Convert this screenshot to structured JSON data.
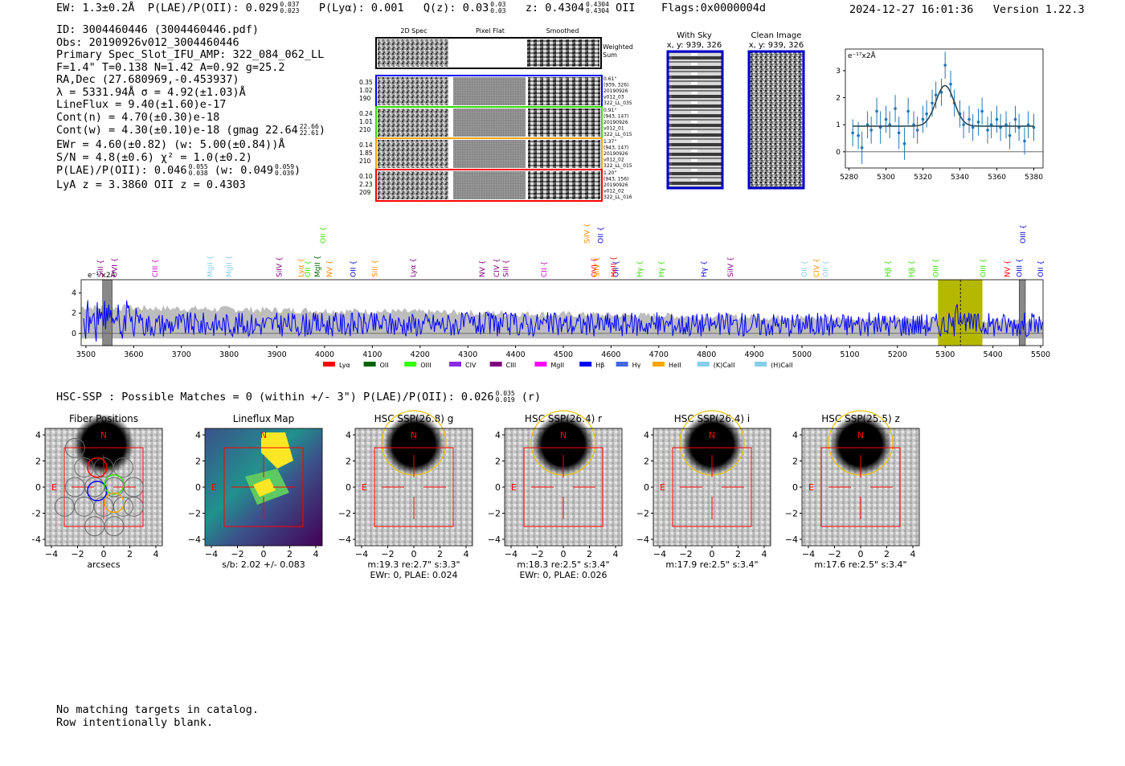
{
  "header": {
    "ew": "EW: 1.3±0.2Å",
    "plae_label": "P(LAE)/P(OII): 0.029",
    "plae_hi": "0.037",
    "plae_lo": "0.023",
    "plya": "P(Lyα): 0.001",
    "qz_label": "Q(z): 0.03",
    "qz_hi": "0.03",
    "qz_lo": "0.03",
    "z_label": "z: 0.4304",
    "z_hi": "0.4304",
    "z_lo": "0.4304",
    "z_line": "OII",
    "flags": "Flags:0x0000004d",
    "datetime": "2024-12-27 16:01:36",
    "version": "Version 1.22.3"
  },
  "info": {
    "id": "ID: 3004460446 (3004460446.pdf)",
    "obs": "Obs: 20190926v012_3004460446",
    "primary": "Primary Spec_Slot_IFU_AMP: 322_084_062_LL",
    "fit": "F=1.4\"  T=0.138  N=1.42  A=0.92  g=25.2",
    "radec": "RA,Dec (27.680969,-0.453937)",
    "lambda": "λ = 5331.94Å  σ = 4.92(±1.03)Å",
    "lineflux": "LineFlux = 9.40(±1.60)e-17",
    "contn": "Cont(n) = 4.70(±0.30)e-18",
    "contw": "Cont(w) = 4.30(±0.10)e-18 (gmag 22.64",
    "gmag_hi": "22.66",
    "gmag_lo": "22.61",
    "ewr": "EWr = 4.60(±0.82) (w: 5.00(±0.84))Å",
    "sn": "S/N = 4.8(±0.6)  χ² = 1.0(±0.2)",
    "plae": "P(LAE)/P(OII): 0.046",
    "plae_hi": "0.055",
    "plae_lo": "0.038",
    "plae_w": "(w: 0.049",
    "plae_w_hi": "0.059",
    "plae_w_lo": "0.039",
    "lya_z": "LyA z = 3.3860  OII z = 0.4303"
  },
  "cutouts": {
    "col_2d": "2D Spec",
    "col_flat": "Pixel Flat",
    "col_smooth": "Smoothed",
    "weighted": "Weighted",
    "sum": "Sum",
    "rows": [
      {
        "v1": "0.35",
        "v2": "1.02",
        "v3": "190",
        "d1": "0.61\"",
        "d2": "(939, 326)",
        "d3": "20190926",
        "d4": "v012_03",
        "d5": "322_LL_035",
        "color": "#0000ff"
      },
      {
        "v1": "0.24",
        "v2": "1.01",
        "v3": "210",
        "d1": "0.91\"",
        "d2": "(943, 147)",
        "d3": "20190926",
        "d4": "v012_01",
        "d5": "322_LL_015",
        "color": "#33dd00"
      },
      {
        "v1": "0.14",
        "v2": "1.85",
        "v3": "210",
        "d1": "1.37\"",
        "d2": "(943, 147)",
        "d3": "20190926",
        "d4": "v012_02",
        "d5": "322_LL_015",
        "color": "#ffa500"
      },
      {
        "v1": "0.10",
        "v2": "2.23",
        "v3": "209",
        "d1": "1.20\"",
        "d2": "(943, 156)",
        "d3": "20190926",
        "d4": "v012_02",
        "d5": "322_LL_016",
        "color": "#ff0000"
      }
    ],
    "with_sky": "With Sky",
    "with_sky_xy": "x, y: 939, 326",
    "clean": "Clean Image",
    "clean_xy": "x, y: 939, 326"
  },
  "chart_data": [
    {
      "type": "scatter",
      "title": "",
      "ylabel": "e⁻¹⁷x2Å",
      "xlim": [
        5278,
        5385
      ],
      "ylim": [
        -0.6,
        3.8
      ],
      "xticks": [
        5280,
        5300,
        5320,
        5340,
        5360,
        5380
      ],
      "yticks": [
        0,
        1,
        2,
        3
      ],
      "x": [
        5282,
        5285,
        5287,
        5290,
        5292,
        5295,
        5297,
        5300,
        5302,
        5305,
        5307,
        5310,
        5312,
        5315,
        5317,
        5320,
        5322,
        5325,
        5327,
        5330,
        5332,
        5335,
        5337,
        5340,
        5342,
        5345,
        5347,
        5350,
        5352,
        5355,
        5357,
        5360,
        5362,
        5365,
        5367,
        5370,
        5372,
        5375,
        5377,
        5380
      ],
      "y": [
        0.7,
        0.6,
        0.15,
        1.0,
        0.8,
        1.5,
        0.9,
        1.2,
        1.0,
        1.6,
        0.7,
        0.3,
        1.5,
        1.0,
        0.8,
        1.2,
        1.4,
        1.8,
        2.1,
        2.2,
        3.2,
        2.5,
        1.8,
        1.4,
        1.0,
        1.2,
        0.9,
        1.1,
        1.5,
        0.8,
        1.0,
        1.2,
        0.9,
        1.0,
        0.6,
        1.2,
        0.9,
        0.4,
        1.0,
        0.9
      ],
      "yerr": [
        0.5,
        0.5,
        0.6,
        0.5,
        0.5,
        0.5,
        0.6,
        0.5,
        0.5,
        0.5,
        0.6,
        0.6,
        0.5,
        0.5,
        0.5,
        0.5,
        0.5,
        0.5,
        0.5,
        0.5,
        0.5,
        0.5,
        0.5,
        0.5,
        0.5,
        0.5,
        0.5,
        0.5,
        0.5,
        0.5,
        0.5,
        0.5,
        0.5,
        0.5,
        0.5,
        0.5,
        0.5,
        0.5,
        0.5,
        0.5
      ],
      "fit": {
        "center": 5331.94,
        "sigma": 4.92,
        "amp": 1.5,
        "cont": 0.95
      }
    },
    {
      "type": "line",
      "title": "",
      "ylabel": "e⁻¹⁷x2Å",
      "xlim": [
        3490,
        5505
      ],
      "ylim": [
        -1.2,
        5.3
      ],
      "xticks": [
        3500,
        3600,
        3700,
        3800,
        3900,
        4000,
        4100,
        4200,
        4300,
        4400,
        4500,
        4600,
        4700,
        4800,
        4900,
        5000,
        5100,
        5200,
        5300,
        5400,
        5500
      ],
      "yticks": [
        0,
        2,
        4
      ],
      "highlight": {
        "x0": 5285,
        "x1": 5378,
        "line": 5332
      },
      "masks": [
        [
          3535,
          3555
        ],
        [
          5455,
          5468
        ]
      ],
      "line_markers": [
        {
          "label": "SiII",
          "x": 3530,
          "color": "#800080"
        },
        {
          "label": "OVI",
          "x": 3560,
          "color": "#800080"
        },
        {
          "label": "CIII",
          "x": 3645,
          "color": "#cc00cc"
        },
        {
          "label": "MgII",
          "x": 3760,
          "color": "#87ceeb"
        },
        {
          "label": "MgII",
          "x": 3800,
          "color": "#87ceeb"
        },
        {
          "label": "SiIV",
          "x": 3905,
          "color": "#800080"
        },
        {
          "label": "Lyα",
          "x": 3950,
          "color": "#ff8800"
        },
        {
          "label": "OII",
          "x": 3965,
          "color": "#33dd00"
        },
        {
          "label": "MgII",
          "x": 3985,
          "color": "#006400"
        },
        {
          "label": "NV",
          "x": 4010,
          "color": "#ff8800"
        },
        {
          "label": "OII",
          "x": 4060,
          "color": "#0000cc"
        },
        {
          "label": "SiII",
          "x": 4105,
          "color": "#ff8800"
        },
        {
          "label": "Lyα",
          "x": 4185,
          "color": "#800080"
        },
        {
          "label": "NV",
          "x": 4330,
          "color": "#800080"
        },
        {
          "label": "CIV",
          "x": 4360,
          "color": "#800080"
        },
        {
          "label": "SiII",
          "x": 4380,
          "color": "#800080"
        },
        {
          "label": "CII",
          "x": 4460,
          "color": "#cc00cc"
        },
        {
          "label": "OVI",
          "x": 4565,
          "color": "#ff0000"
        },
        {
          "label": "SiIV",
          "x": 4570,
          "color": "#ff8800"
        },
        {
          "label": "OII",
          "x": 4610,
          "color": "#0000cc"
        },
        {
          "label": "HeII",
          "x": 4605,
          "color": "#ff0000"
        },
        {
          "label": "Hγ",
          "x": 4660,
          "color": "#33dd00"
        },
        {
          "label": "Hγ",
          "x": 4705,
          "color": "#33dd00"
        },
        {
          "label": "Hγ",
          "x": 4795,
          "color": "#0000cc"
        },
        {
          "label": "SiIV",
          "x": 4850,
          "color": "#800080"
        },
        {
          "label": "OII",
          "x": 5005,
          "color": "#87ceeb"
        },
        {
          "label": "CIV",
          "x": 5030,
          "color": "#ff8800"
        },
        {
          "label": "OII",
          "x": 5050,
          "color": "#87ceeb"
        },
        {
          "label": "Hβ",
          "x": 5180,
          "color": "#33dd00"
        },
        {
          "label": "Hβ",
          "x": 5230,
          "color": "#33dd00"
        },
        {
          "label": "OIII",
          "x": 5280,
          "color": "#33dd00"
        },
        {
          "label": "OIII",
          "x": 5380,
          "color": "#33dd00"
        },
        {
          "label": "NV",
          "x": 5430,
          "color": "#ff0000"
        },
        {
          "label": "OIII",
          "x": 5455,
          "color": "#0000cc"
        },
        {
          "label": "OII",
          "x": 5500,
          "color": "#0000cc"
        }
      ],
      "upper_markers": [
        {
          "label": "OII",
          "x": 3997,
          "color": "#33dd00"
        },
        {
          "label": "SiIV",
          "x": 4550,
          "color": "#ff8800"
        },
        {
          "label": "OII",
          "x": 4578,
          "color": "#0000cc"
        },
        {
          "label": "OIII",
          "x": 5463,
          "color": "#0000cc"
        }
      ],
      "legend": [
        {
          "label": "Lyα",
          "color": "#ff0000"
        },
        {
          "label": "OII",
          "color": "#006400"
        },
        {
          "label": "OIII",
          "color": "#33ff00"
        },
        {
          "label": "CIV",
          "color": "#8a2be2"
        },
        {
          "label": "CIII",
          "color": "#800080"
        },
        {
          "label": "MgII",
          "color": "#ff00ff"
        },
        {
          "label": "Hβ",
          "color": "#0000ff"
        },
        {
          "label": "Hγ",
          "color": "#4169e1"
        },
        {
          "label": "HeII",
          "color": "#ffa500"
        },
        {
          "label": "(K)CaII",
          "color": "#87ceeb"
        },
        {
          "label": "(H)CaII",
          "color": "#87ceeb"
        }
      ]
    }
  ],
  "hsc_line": "HSC-SSP : Possible Matches = 0 (within +/- 3\")  P(LAE)/P(OII): 0.026",
  "hsc_hi": "0.035",
  "hsc_lo": "0.019",
  "hsc_band": "(r)",
  "panels": [
    {
      "title": "Fiber Positions",
      "xlabel": "arcsecs",
      "xlabel2": ""
    },
    {
      "title": "Lineflux Map",
      "xlabel": "s/b: 2.02 +/- 0.083",
      "xlabel2": ""
    },
    {
      "title": "HSC SSP(26.8) g",
      "xlabel": "m:19.3  re:2.7\"  s:3.3\"",
      "xlabel2": "EWr: 0, PLAE: 0.024"
    },
    {
      "title": "HSC SSP(26.4) r",
      "xlabel": "m:18.3  re:2.5\"  s:3.4\"",
      "xlabel2": "EWr: 0, PLAE: 0.026"
    },
    {
      "title": "HSC SSP(26.4) i",
      "xlabel": "m:17.9  re:2.5\"  s:3.4\"",
      "xlabel2": ""
    },
    {
      "title": "HSC SSP(25.5) z",
      "xlabel": "m:17.6  re:2.5\"  s:3.4\"",
      "xlabel2": ""
    }
  ],
  "panel_ticks": [
    "−4",
    "−2",
    "0",
    "2",
    "4"
  ],
  "compass_n": "N",
  "compass_e": "E",
  "footer": {
    "line1": "No matching targets in catalog.",
    "line2": "Row intentionally blank."
  },
  "colors": {
    "spectrum": "#0000ff",
    "fit": "#2a4a5a",
    "points": "#1f77b4",
    "highlight": "#b5b800",
    "cutout_frame": "#0000cc"
  }
}
